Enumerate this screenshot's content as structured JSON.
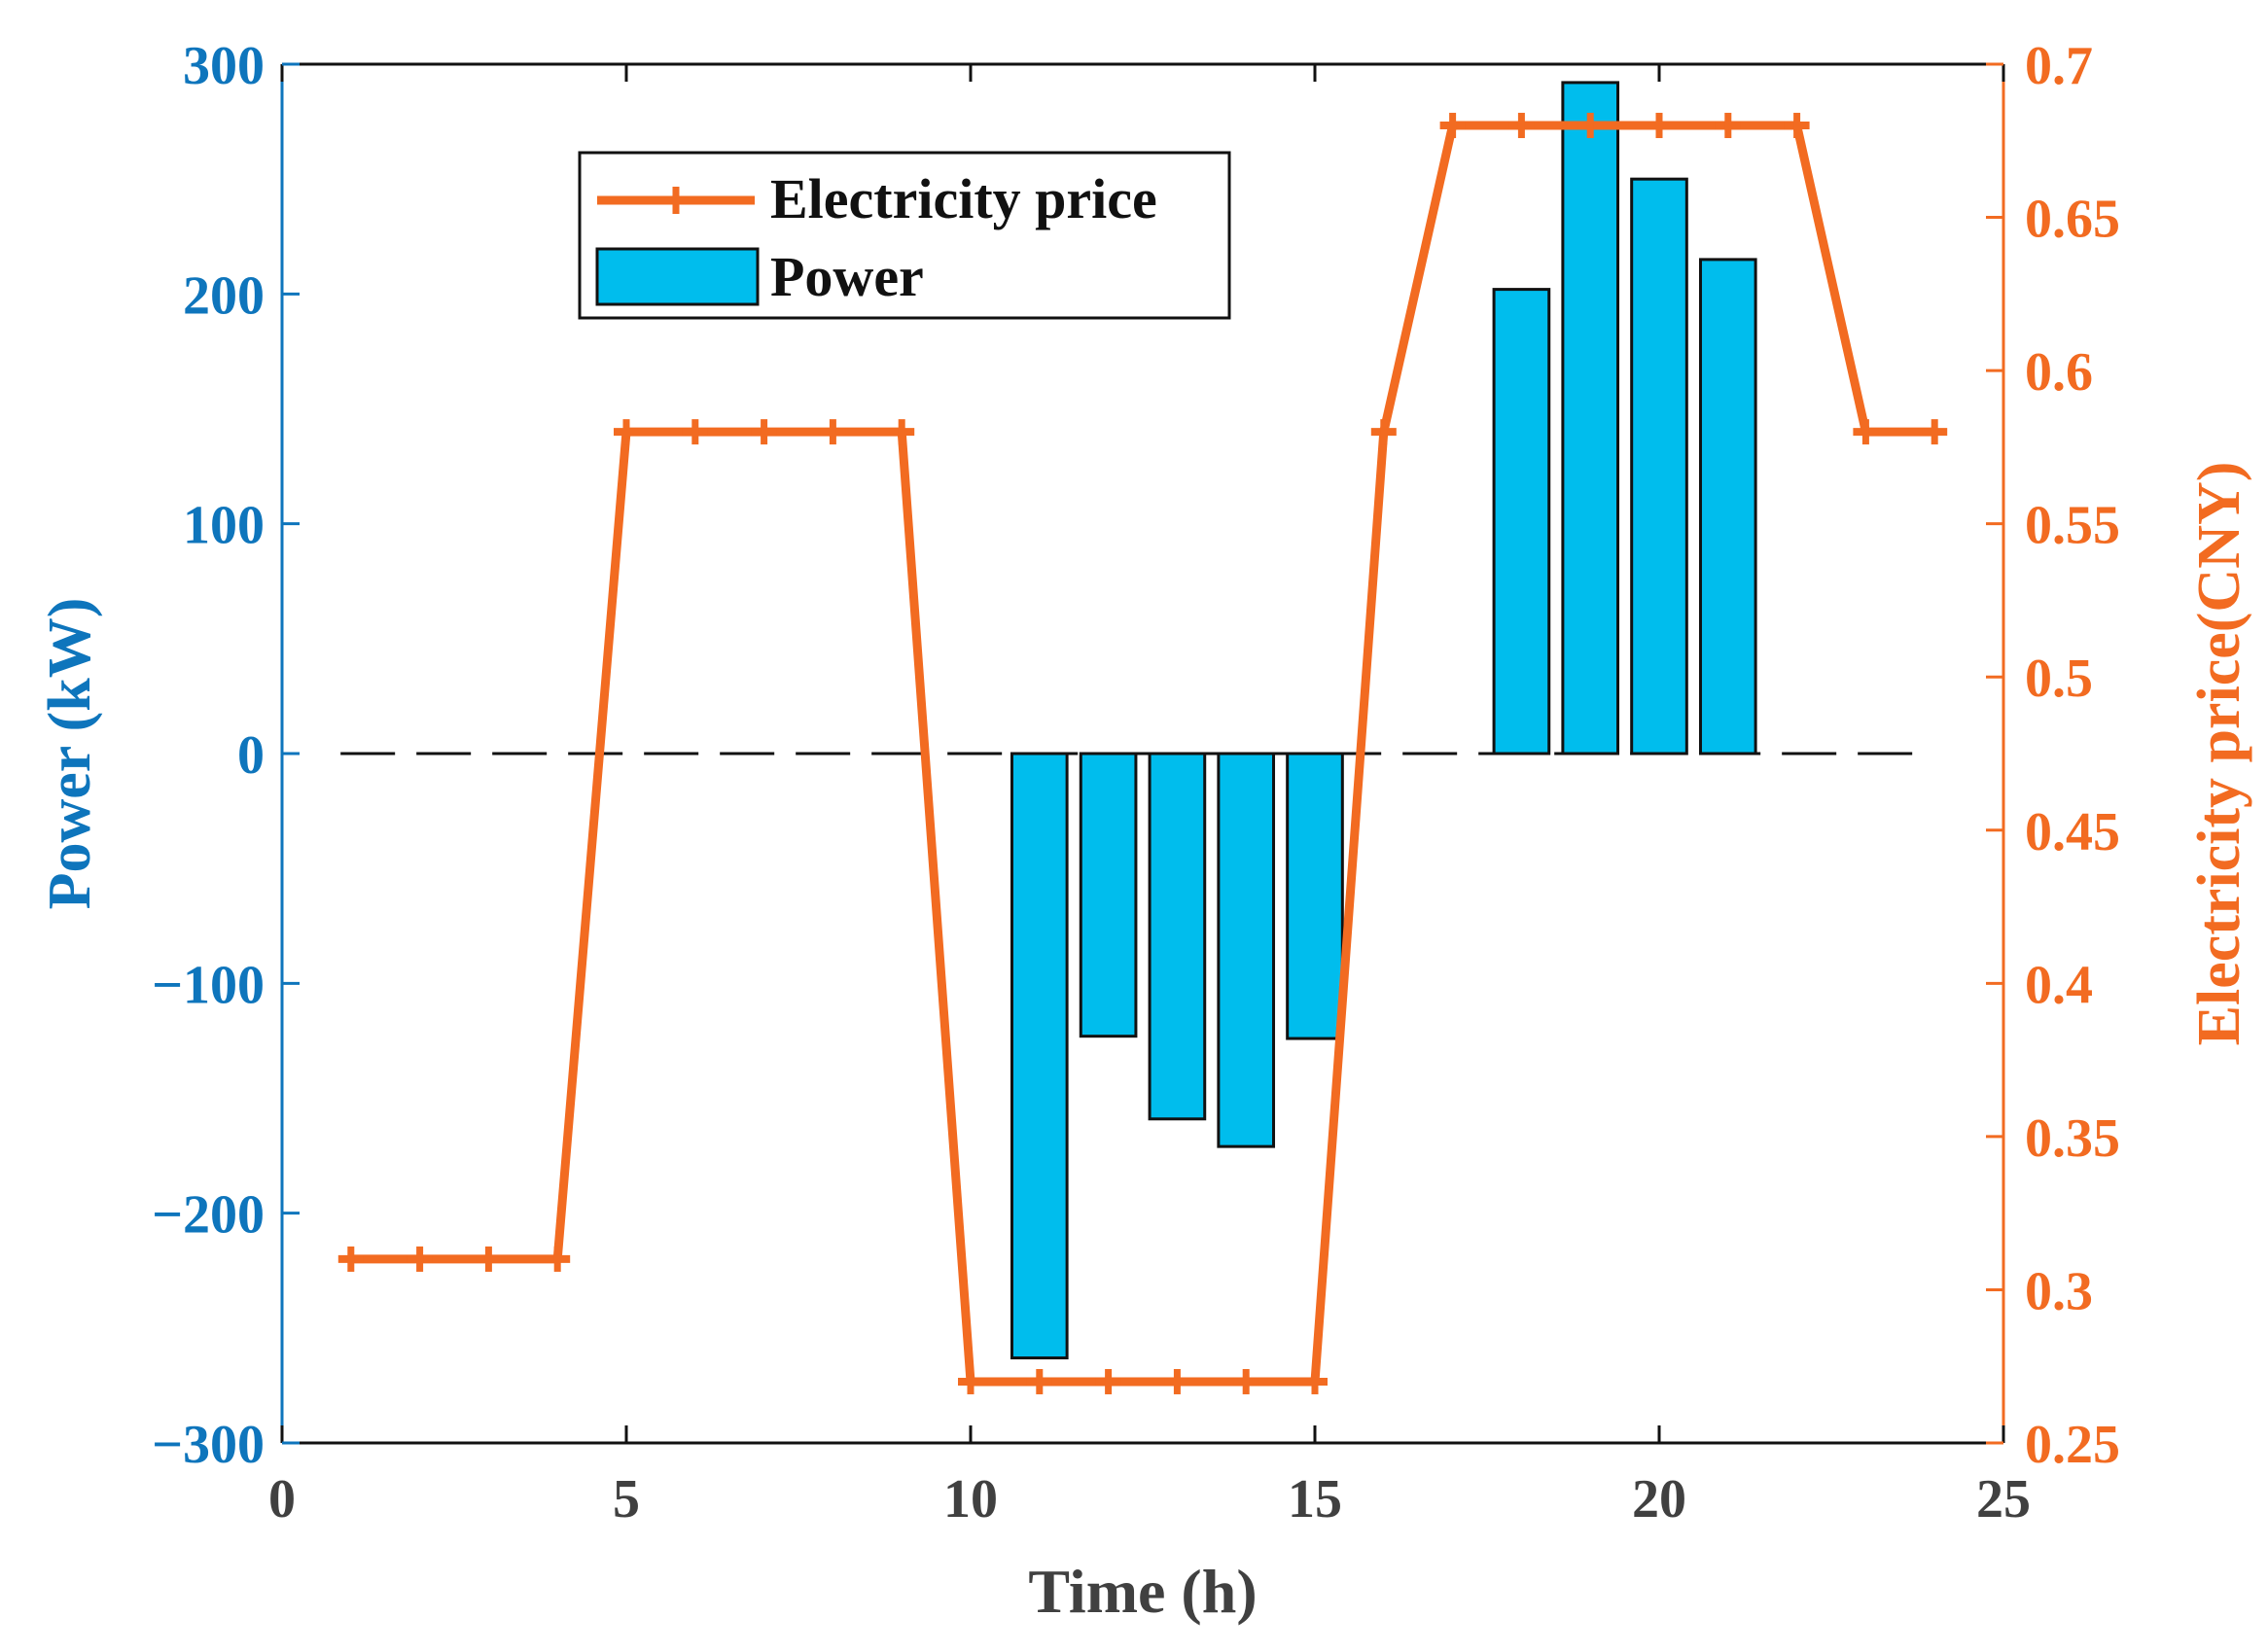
{
  "chart_data": {
    "type": "bar+line",
    "xlabel": "Time (h)",
    "ylabel_left": "Power (kW)",
    "ylabel_right": "Electricity price(CNY)",
    "xlim": [
      0,
      25
    ],
    "ylim_left": [
      -300,
      300
    ],
    "ylim_right": [
      0.25,
      0.7
    ],
    "x_ticks": [
      0,
      5,
      10,
      15,
      20,
      25
    ],
    "y_ticks_left": [
      -300,
      -200,
      -100,
      0,
      100,
      200,
      300
    ],
    "y_ticks_left_labels": [
      "−300",
      "−200",
      "−100",
      "0",
      "100",
      "200",
      "300"
    ],
    "y_ticks_right": [
      0.25,
      0.3,
      0.35,
      0.4,
      0.45,
      0.5,
      0.55,
      0.6,
      0.65,
      0.7
    ],
    "y_ticks_right_labels": [
      "0.25",
      "0.3",
      "0.35",
      "0.4",
      "0.45",
      "0.5",
      "0.55",
      "0.6",
      "0.65",
      "0.7"
    ],
    "legend_position": "top-left-center",
    "series": [
      {
        "name": "Electricity price",
        "type": "line",
        "axis": "right",
        "color": "#F26B21",
        "x": [
          1,
          2,
          3,
          4,
          5,
          6,
          7,
          8,
          9,
          10,
          11,
          12,
          13,
          14,
          15,
          16,
          17,
          18,
          19,
          20,
          21,
          22,
          23,
          24
        ],
        "values": [
          0.31,
          0.31,
          0.31,
          0.31,
          0.58,
          0.58,
          0.58,
          0.58,
          0.58,
          0.27,
          0.27,
          0.27,
          0.27,
          0.27,
          0.27,
          0.58,
          0.68,
          0.68,
          0.68,
          0.68,
          0.68,
          0.68,
          0.58,
          0.58
        ]
      },
      {
        "name": "Power",
        "type": "bar",
        "axis": "left",
        "color": "#00BDED",
        "x": [
          11,
          12,
          13,
          14,
          15,
          18,
          19,
          20,
          21
        ],
        "values": [
          -263,
          -123,
          -159,
          -171,
          -124,
          202,
          292,
          250,
          215
        ]
      }
    ],
    "zero_line": {
      "value": 0,
      "style": "dashed"
    }
  },
  "colors": {
    "left_axis": "#0E75BC",
    "right_axis": "#F26B21",
    "bar_fill": "#00BDED",
    "bar_edge": "#111111",
    "line": "#F26B21"
  }
}
